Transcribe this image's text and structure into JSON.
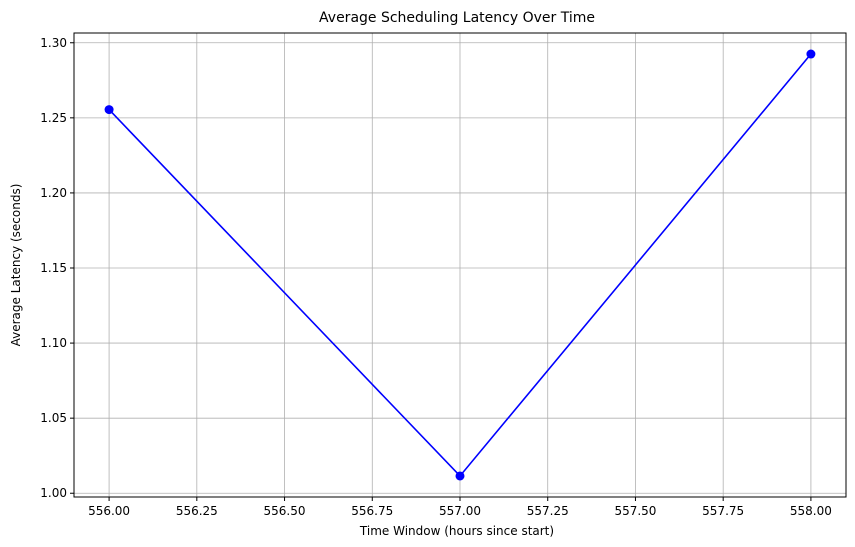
{
  "chart_data": {
    "type": "line",
    "title": "Average Scheduling Latency Over Time",
    "xlabel": "Time Window (hours since start)",
    "ylabel": "Average Latency (seconds)",
    "x": [
      556,
      557,
      558
    ],
    "series": [
      {
        "values": [
          1.2555,
          1.0115,
          1.2925
        ],
        "color": "#0000ff",
        "marker": "circle"
      }
    ],
    "xlim": [
      555.9,
      558.1
    ],
    "ylim": [
      0.9975,
      1.3065
    ],
    "xticks": [
      556.0,
      556.25,
      556.5,
      556.75,
      557.0,
      557.25,
      557.5,
      557.75,
      558.0
    ],
    "xtick_labels": [
      "556.00",
      "556.25",
      "556.50",
      "556.75",
      "557.00",
      "557.25",
      "557.50",
      "557.75",
      "558.00"
    ],
    "yticks": [
      1.0,
      1.05,
      1.1,
      1.15,
      1.2,
      1.25,
      1.3
    ],
    "ytick_labels": [
      "1.00",
      "1.05",
      "1.10",
      "1.15",
      "1.20",
      "1.25",
      "1.30"
    ],
    "grid": true,
    "grid_color": "#b0b0b0"
  }
}
